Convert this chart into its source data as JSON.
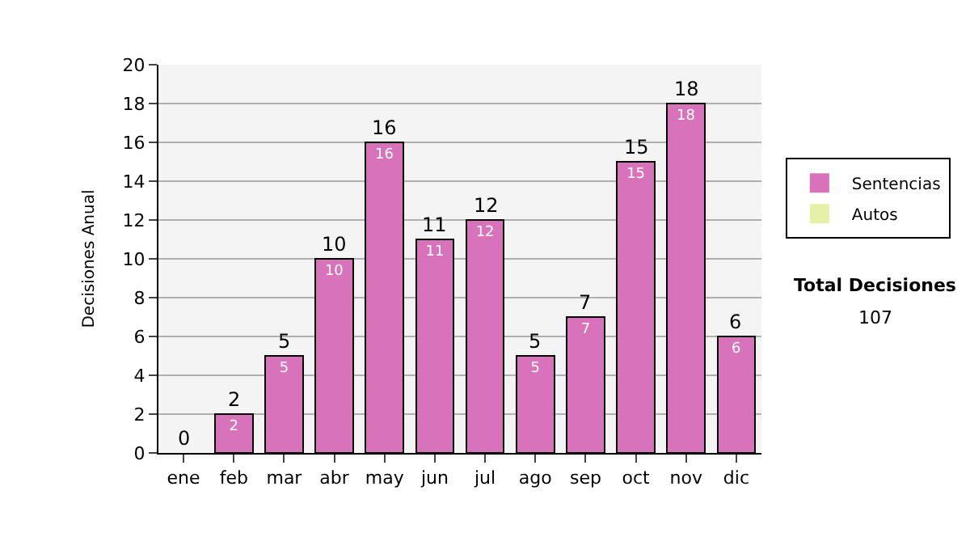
{
  "chart_data": {
    "type": "bar",
    "ylabel": "Decisiones Anual",
    "stacked": true,
    "categories": [
      "ene",
      "feb",
      "mar",
      "abr",
      "may",
      "jun",
      "jul",
      "ago",
      "sep",
      "oct",
      "nov",
      "dic"
    ],
    "series": [
      {
        "name": "Sentencias",
        "color": "#d873bb",
        "values": [
          0,
          2,
          5,
          10,
          16,
          11,
          12,
          5,
          7,
          15,
          18,
          6
        ],
        "value_labels": [
          null,
          "2",
          "5",
          "10",
          "16",
          "11",
          "12",
          "5",
          "7",
          "15",
          "18",
          "6"
        ]
      },
      {
        "name": "Autos",
        "color": "#e6f0a6",
        "values": [
          0,
          0,
          0,
          0,
          0,
          0,
          0,
          0,
          0,
          0,
          0,
          0
        ]
      }
    ],
    "totals": [
      "0",
      "2",
      "5",
      "10",
      "16",
      "11",
      "12",
      "5",
      "7",
      "15",
      "18",
      "6"
    ],
    "ylim": [
      0,
      20
    ],
    "yticks": [
      0,
      2,
      4,
      6,
      8,
      10,
      12,
      14,
      16,
      18,
      20
    ],
    "grid": "y",
    "legend": "right",
    "annotations": [
      "Total Decisiones",
      "107"
    ]
  }
}
